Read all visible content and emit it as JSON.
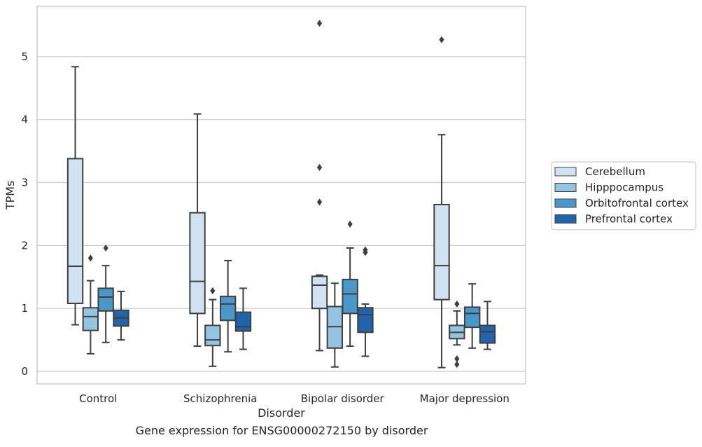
{
  "caption": "Gene expression for ENSG00000272150 by disorder",
  "chart_data": {
    "type": "box",
    "title": "",
    "xlabel": "Disorder",
    "ylabel": "TPMs",
    "ylim": [
      -0.2,
      5.8
    ],
    "yticks": [
      0,
      1,
      2,
      3,
      4,
      5
    ],
    "grid": "y",
    "legend_position": "right",
    "categories": [
      "Control",
      "Schizophrenia",
      "Bipolar disorder",
      "Major depression"
    ],
    "series": [
      {
        "name": "Cerebellum",
        "color": "#d0e1f2",
        "boxes": [
          {
            "whisker_low": 0.74,
            "q1": 1.08,
            "median": 1.67,
            "q3": 3.38,
            "whisker_high": 4.84,
            "outliers": []
          },
          {
            "whisker_low": 0.4,
            "q1": 0.92,
            "median": 1.43,
            "q3": 2.52,
            "whisker_high": 4.09,
            "outliers": []
          },
          {
            "whisker_low": 0.33,
            "q1": 1.0,
            "median": 1.37,
            "q3": 1.51,
            "whisker_high": 1.53,
            "outliers": [
              2.69,
              3.24,
              5.53
            ]
          },
          {
            "whisker_low": 0.06,
            "q1": 1.14,
            "median": 1.68,
            "q3": 2.65,
            "whisker_high": 3.76,
            "outliers": [
              5.27
            ]
          }
        ]
      },
      {
        "name": "Hipppocampus",
        "color": "#94c4df",
        "boxes": [
          {
            "whisker_low": 0.28,
            "q1": 0.65,
            "median": 0.87,
            "q3": 1.01,
            "whisker_high": 1.44,
            "outliers": [
              1.8
            ]
          },
          {
            "whisker_low": 0.08,
            "q1": 0.41,
            "median": 0.5,
            "q3": 0.73,
            "whisker_high": 1.14,
            "outliers": [
              1.28
            ]
          },
          {
            "whisker_low": 0.07,
            "q1": 0.37,
            "median": 0.71,
            "q3": 1.03,
            "whisker_high": 1.4,
            "outliers": []
          },
          {
            "whisker_low": 0.42,
            "q1": 0.52,
            "median": 0.62,
            "q3": 0.73,
            "whisker_high": 0.96,
            "outliers": [
              1.07,
              0.2,
              0.11
            ]
          }
        ]
      },
      {
        "name": "Orbitofrontal cortex",
        "color": "#4a98c9",
        "boxes": [
          {
            "whisker_low": 0.46,
            "q1": 0.96,
            "median": 1.18,
            "q3": 1.32,
            "whisker_high": 1.68,
            "outliers": [
              1.96
            ]
          },
          {
            "whisker_low": 0.31,
            "q1": 0.81,
            "median": 1.07,
            "q3": 1.19,
            "whisker_high": 1.76,
            "outliers": []
          },
          {
            "whisker_low": 0.4,
            "q1": 0.92,
            "median": 1.23,
            "q3": 1.46,
            "whisker_high": 1.96,
            "outliers": [
              2.34
            ]
          },
          {
            "whisker_low": 0.37,
            "q1": 0.7,
            "median": 0.92,
            "q3": 1.02,
            "whisker_high": 1.39,
            "outliers": []
          }
        ]
      },
      {
        "name": "Prefrontal cortex",
        "color": "#2264a9",
        "boxes": [
          {
            "whisker_low": 0.5,
            "q1": 0.72,
            "median": 0.85,
            "q3": 0.97,
            "whisker_high": 1.27,
            "outliers": []
          },
          {
            "whisker_low": 0.35,
            "q1": 0.64,
            "median": 0.71,
            "q3": 0.94,
            "whisker_high": 1.32,
            "outliers": []
          },
          {
            "whisker_low": 0.24,
            "q1": 0.62,
            "median": 0.9,
            "q3": 1.01,
            "whisker_high": 1.07,
            "outliers": [
              1.89,
              1.93
            ]
          },
          {
            "whisker_low": 0.35,
            "q1": 0.45,
            "median": 0.63,
            "q3": 0.73,
            "whisker_high": 1.11,
            "outliers": []
          }
        ]
      }
    ]
  }
}
